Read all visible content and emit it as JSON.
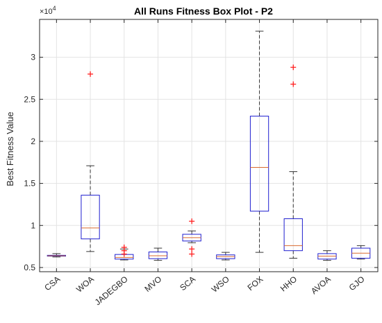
{
  "chart_data": {
    "type": "box",
    "title": "All Runs Fitness Box Plot - P2",
    "xlabel": "",
    "ylabel": "Best Fitness Value",
    "y_exponent_label": "×10",
    "y_exponent_power": "4",
    "ylim": [
      0.45,
      3.45
    ],
    "grid": true,
    "yticks": [
      0.5,
      1,
      1.5,
      2,
      2.5,
      3
    ],
    "ytick_labels": [
      "0.5",
      "1",
      "1.5",
      "2",
      "2.5",
      "3"
    ],
    "categories": [
      "CSA",
      "WOA",
      "JADEGBO",
      "MVO",
      "SCA",
      "WSO",
      "FOX",
      "HHO",
      "AVOA",
      "GJO"
    ],
    "boxes": [
      {
        "name": "CSA",
        "whislo": 0.625,
        "q1": 0.635,
        "med": 0.64,
        "q3": 0.645,
        "whishi": 0.665,
        "fliers": []
      },
      {
        "name": "WOA",
        "whislo": 0.69,
        "q1": 0.84,
        "med": 0.97,
        "q3": 1.36,
        "whishi": 1.71,
        "fliers": [
          2.8
        ]
      },
      {
        "name": "JADEGBO",
        "whislo": 0.59,
        "q1": 0.6,
        "med": 0.62,
        "q3": 0.655,
        "whishi": 0.72,
        "fliers": [
          0.74,
          0.7,
          0.66
        ]
      },
      {
        "name": "MVO",
        "whislo": 0.585,
        "q1": 0.605,
        "med": 0.64,
        "q3": 0.685,
        "whishi": 0.73,
        "fliers": []
      },
      {
        "name": "SCA",
        "whislo": 0.795,
        "q1": 0.815,
        "med": 0.855,
        "q3": 0.895,
        "whishi": 0.935,
        "fliers": [
          1.05,
          0.72,
          0.66
        ]
      },
      {
        "name": "WSO",
        "whislo": 0.59,
        "q1": 0.605,
        "med": 0.63,
        "q3": 0.65,
        "whishi": 0.68,
        "fliers": []
      },
      {
        "name": "FOX",
        "whislo": 0.68,
        "q1": 1.17,
        "med": 1.69,
        "q3": 2.3,
        "whishi": 3.31,
        "fliers": []
      },
      {
        "name": "HHO",
        "whislo": 0.61,
        "q1": 0.7,
        "med": 0.76,
        "q3": 1.08,
        "whishi": 1.64,
        "fliers": [
          2.88,
          2.68
        ]
      },
      {
        "name": "AVOA",
        "whislo": 0.585,
        "q1": 0.6,
        "med": 0.635,
        "q3": 0.665,
        "whishi": 0.7,
        "fliers": []
      },
      {
        "name": "GJO",
        "whislo": 0.6,
        "q1": 0.61,
        "med": 0.67,
        "q3": 0.73,
        "whishi": 0.76,
        "fliers": []
      }
    ]
  }
}
